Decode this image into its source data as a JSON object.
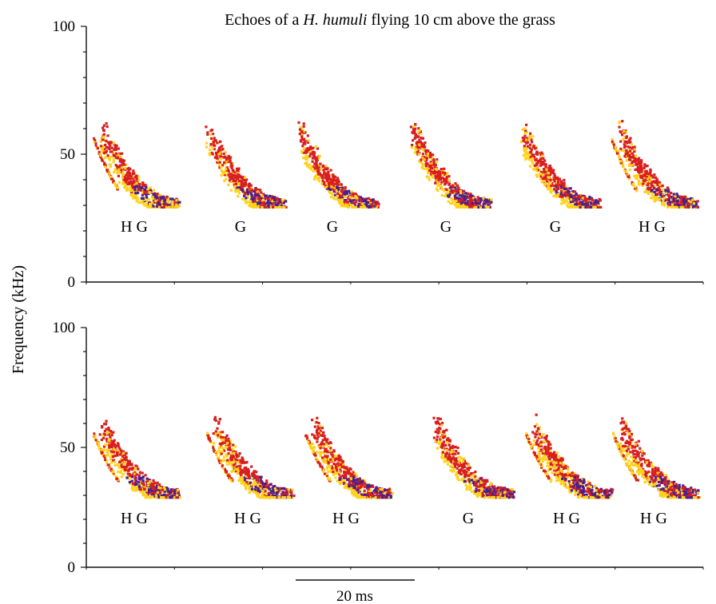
{
  "chart_data": {
    "type": "spectrogram",
    "title_parts": [
      "Echoes of a ",
      "H. humuli",
      " flying 10 cm above the grass"
    ],
    "ylabel": "Frequency (kHz)",
    "ylim": [
      0,
      100
    ],
    "yticks": [
      0,
      50,
      100
    ],
    "ytick_labels": [
      "0",
      "50",
      "100"
    ],
    "scale_bar_label": "20 ms",
    "scale_bar_ms": 20,
    "colors": {
      "low": "#ffd21a",
      "mid": "#d81e1e",
      "high": "#4a1f8c"
    },
    "panels": [
      {
        "name": "top",
        "calls": [
          {
            "label": "H G",
            "f_max": 60,
            "f_min": 31
          },
          {
            "label": "G",
            "f_max": 60,
            "f_min": 31
          },
          {
            "label": "G",
            "f_max": 60,
            "f_min": 31
          },
          {
            "label": "G",
            "f_max": 60,
            "f_min": 31
          },
          {
            "label": "G",
            "f_max": 60,
            "f_min": 31
          },
          {
            "label": "H G",
            "f_max": 60,
            "f_min": 31
          }
        ]
      },
      {
        "name": "bottom",
        "calls": [
          {
            "label": "H G",
            "f_max": 60,
            "f_min": 31
          },
          {
            "label": "H G",
            "f_max": 60,
            "f_min": 31
          },
          {
            "label": "H G",
            "f_max": 60,
            "f_min": 31
          },
          {
            "label": "G",
            "f_max": 60,
            "f_min": 31
          },
          {
            "label": "H G",
            "f_max": 60,
            "f_min": 31
          },
          {
            "label": "H G",
            "f_max": 60,
            "f_min": 31
          }
        ]
      }
    ]
  }
}
